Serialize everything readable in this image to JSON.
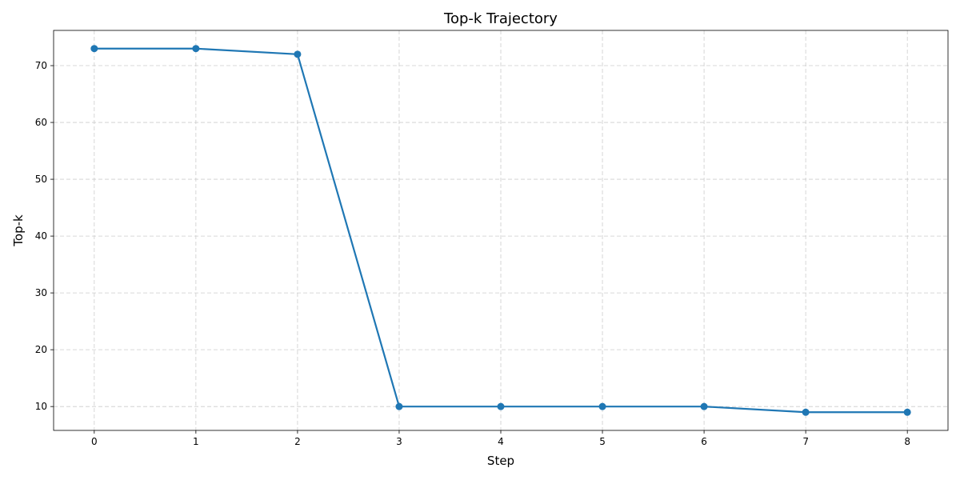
{
  "chart_data": {
    "type": "line",
    "title": "Top-k Trajectory",
    "xlabel": "Step",
    "ylabel": "Top-k",
    "x": [
      0,
      1,
      2,
      3,
      4,
      5,
      6,
      7,
      8
    ],
    "series": [
      {
        "values": [
          73,
          73,
          72,
          10,
          10,
          10,
          10,
          9,
          9
        ],
        "color": "#1f77b4",
        "marker": "circle"
      }
    ],
    "xlim": [
      -0.4,
      8.4
    ],
    "ylim": [
      5.8,
      76.2
    ],
    "xticks": [
      "0",
      "1",
      "2",
      "3",
      "4",
      "5",
      "6",
      "7",
      "8"
    ],
    "yticks": [
      "10",
      "20",
      "30",
      "40",
      "50",
      "60",
      "70"
    ],
    "grid": true,
    "grid_style": "dashed",
    "legend": false
  }
}
